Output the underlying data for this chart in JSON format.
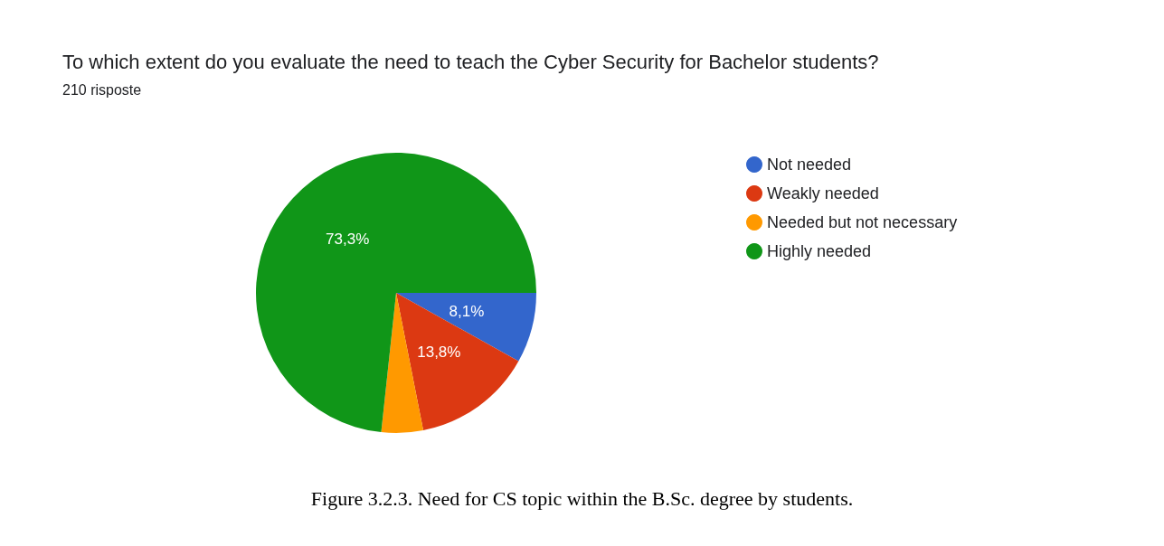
{
  "chart_data": {
    "type": "pie",
    "title": "To which extent do you evaluate the need to teach the Cyber Security for Bachelor students?",
    "subtitle": "210 risposte",
    "categories": [
      "Not needed",
      "Weakly needed",
      "Needed but not necessary",
      "Highly needed"
    ],
    "values": [
      8.1,
      13.8,
      4.8,
      73.3
    ],
    "colors": [
      "#3366cc",
      "#dc3912",
      "#ff9900",
      "#109618"
    ],
    "value_labels": [
      "8,1%",
      "13,8%",
      null,
      "73,3%"
    ],
    "legend": "top right",
    "annotations": [
      "Figure 3.2.3. Need for CS topic within the B.Sc. degree by students."
    ]
  }
}
